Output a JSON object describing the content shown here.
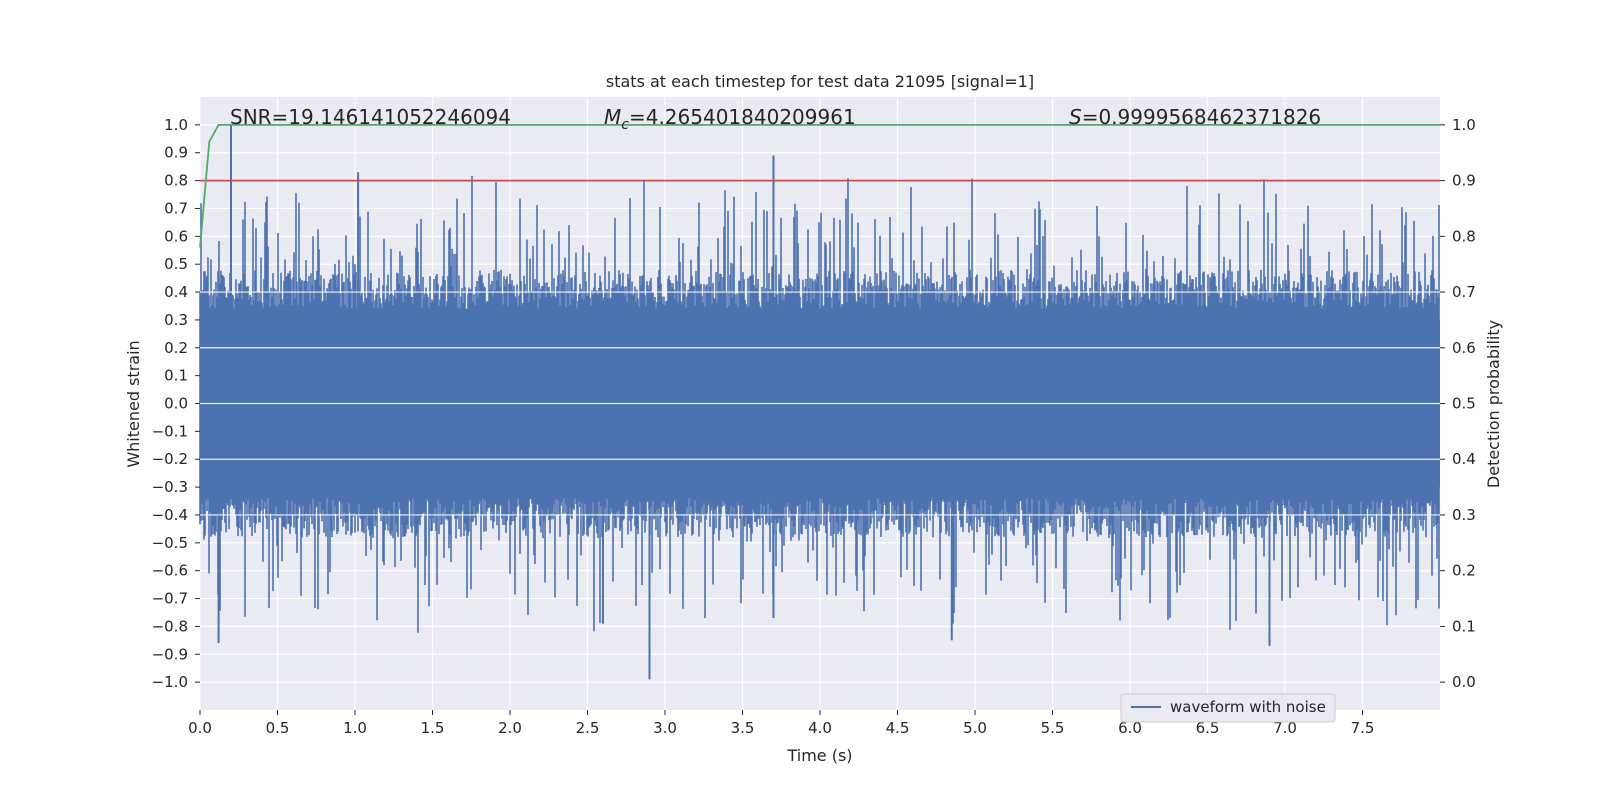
{
  "chart_data": {
    "type": "line",
    "title": "stats at each timestep for test data 21095 [signal=1]",
    "xlabel": "Time (s)",
    "ylabel_left": "Whitened strain",
    "ylabel_right": "Detection probability",
    "xlim": [
      0,
      8
    ],
    "ylim_left": [
      -1.1,
      1.1
    ],
    "ylim_right": [
      -0.05,
      1.05
    ],
    "x_ticks": [
      "0.0",
      "0.5",
      "1.0",
      "1.5",
      "2.0",
      "2.5",
      "3.0",
      "3.5",
      "4.0",
      "4.5",
      "5.0",
      "5.5",
      "6.0",
      "6.5",
      "7.0",
      "7.5"
    ],
    "y_left_ticks": [
      "1.0",
      "0.9",
      "0.8",
      "0.7",
      "0.6",
      "0.5",
      "0.4",
      "0.3",
      "0.2",
      "0.1",
      "0.0",
      "−0.1",
      "−0.2",
      "−0.3",
      "−0.4",
      "−0.5",
      "−0.6",
      "−0.7",
      "−0.8",
      "−0.9",
      "−1.0"
    ],
    "y_right_ticks": [
      "1.0",
      "0.9",
      "0.8",
      "0.7",
      "0.6",
      "0.5",
      "0.4",
      "0.3",
      "0.2",
      "0.1",
      "0.0"
    ],
    "grid": true,
    "legend_position": "lower-right",
    "annotations": {
      "snr": "SNR=19.146141052246094",
      "mc_symbol": "M",
      "mc_subscript": "c",
      "mc_value": "=4.265401840209961",
      "s_symbol": "S",
      "s_value": "=0.9999568462371826"
    },
    "series": [
      {
        "name": "waveform with noise",
        "axis": "left",
        "color": "#4c72b0",
        "note_shape": "dense noisy strain, approx range",
        "envelope": {
          "typical_upper": 0.4,
          "typical_lower": -0.4,
          "max": 1.0,
          "min": -0.99
        },
        "spikes": [
          {
            "x": 0.2,
            "y": 1.0
          },
          {
            "x": 1.02,
            "y": 0.83
          },
          {
            "x": 3.7,
            "y": 0.89
          },
          {
            "x": 0.12,
            "y": -0.86
          },
          {
            "x": 2.9,
            "y": -0.99
          },
          {
            "x": 4.85,
            "y": -0.85
          },
          {
            "x": 6.9,
            "y": -0.87
          },
          {
            "x": 2.6,
            "y": -0.79
          },
          {
            "x": 3.7,
            "y": -0.77
          }
        ]
      },
      {
        "name": "detection probability",
        "axis": "right",
        "color": "#55a868",
        "x": [
          0.0,
          0.06,
          0.12,
          0.2,
          8.0
        ],
        "y": [
          0.78,
          0.97,
          1.0,
          1.0,
          1.0
        ]
      },
      {
        "name": "threshold",
        "axis": "right",
        "color": "#c44e52",
        "x": [
          0.0,
          8.0
        ],
        "y": [
          0.9,
          0.9
        ]
      }
    ]
  }
}
